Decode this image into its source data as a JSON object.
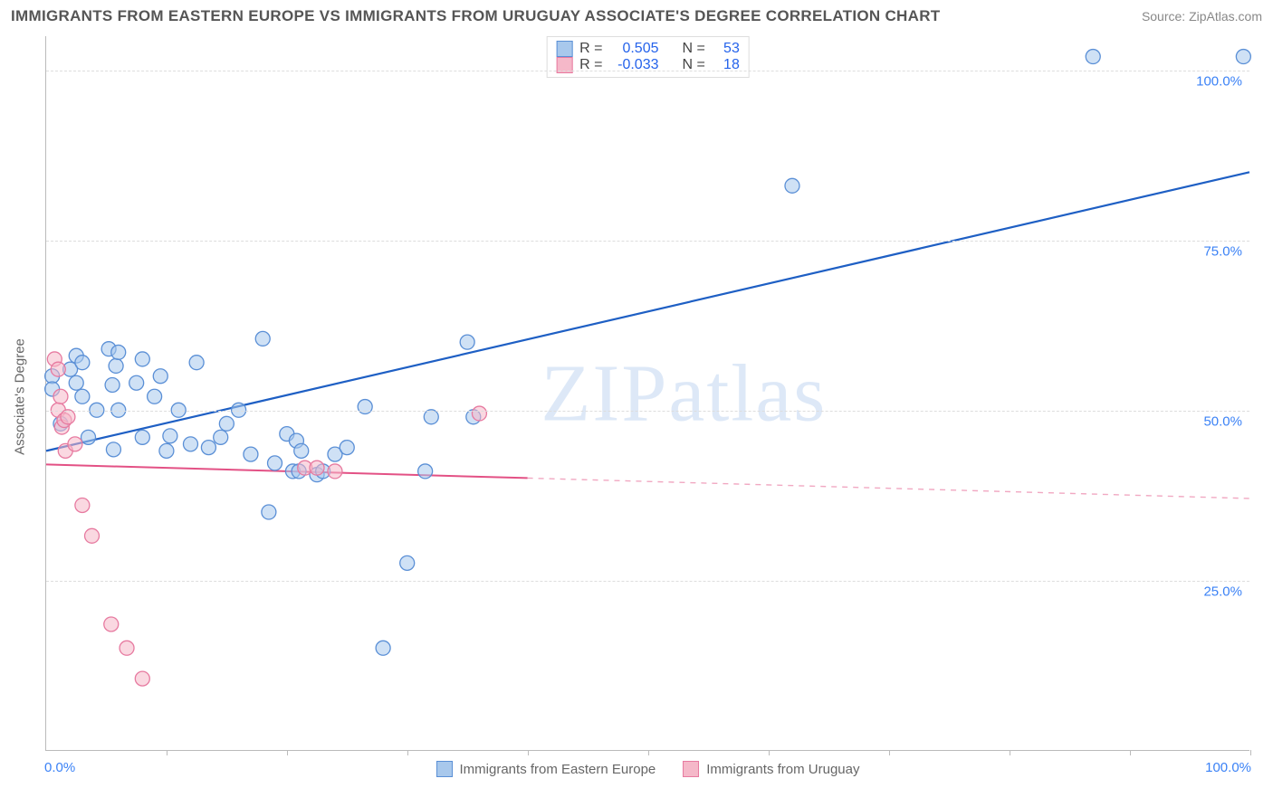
{
  "header": {
    "title": "IMMIGRANTS FROM EASTERN EUROPE VS IMMIGRANTS FROM URUGUAY ASSOCIATE'S DEGREE CORRELATION CHART",
    "source": "Source: ZipAtlas.com"
  },
  "chart": {
    "type": "scatter",
    "xlim": [
      0,
      100
    ],
    "ylim": [
      0,
      105
    ],
    "y_ticks": [
      25,
      50,
      75,
      100
    ],
    "y_tick_labels": [
      "25.0%",
      "50.0%",
      "75.0%",
      "100.0%"
    ],
    "x_ticks": [
      10,
      20,
      30,
      40,
      50,
      60,
      70,
      80,
      90,
      100
    ],
    "x_left_label": "0.0%",
    "x_right_label": "100.0%",
    "y_axis_title": "Associate's Degree",
    "background_color": "#ffffff",
    "grid_color": "#dddddd",
    "axis_color": "#bbbbbb",
    "tick_label_color": "#3b82f6",
    "marker_radius": 8,
    "marker_stroke_width": 1.3,
    "series": [
      {
        "name": "Immigrants from Eastern Europe",
        "color_fill": "#a8c8ec",
        "color_stroke": "#5a8fd6",
        "fill_opacity": 0.55,
        "trend": {
          "x1": 0,
          "y1": 44,
          "x2": 100,
          "y2": 85,
          "color": "#1e5fc4",
          "width": 2.2,
          "dash_from_x": null
        },
        "points": [
          [
            0.5,
            55
          ],
          [
            0.5,
            53.1
          ],
          [
            1.2,
            48
          ],
          [
            2,
            56
          ],
          [
            2.5,
            58
          ],
          [
            2.5,
            54
          ],
          [
            3,
            52
          ],
          [
            3,
            57
          ],
          [
            3.5,
            46
          ],
          [
            4.2,
            50
          ],
          [
            5.2,
            59
          ],
          [
            5.5,
            53.7
          ],
          [
            5.8,
            56.5
          ],
          [
            6,
            58.5
          ],
          [
            5.6,
            44.2
          ],
          [
            6,
            50
          ],
          [
            7.5,
            54
          ],
          [
            8,
            46
          ],
          [
            8,
            57.5
          ],
          [
            9,
            52
          ],
          [
            9.5,
            55
          ],
          [
            10,
            44
          ],
          [
            10.3,
            46.2
          ],
          [
            11,
            50
          ],
          [
            12,
            45
          ],
          [
            12.5,
            57
          ],
          [
            13.5,
            44.5
          ],
          [
            14.5,
            46
          ],
          [
            15,
            48
          ],
          [
            16,
            50
          ],
          [
            17,
            43.5
          ],
          [
            18,
            60.5
          ],
          [
            18.5,
            35
          ],
          [
            19,
            42.2
          ],
          [
            20,
            46.5
          ],
          [
            20.5,
            41
          ],
          [
            20.8,
            45.5
          ],
          [
            21,
            41
          ],
          [
            21.2,
            44
          ],
          [
            22.5,
            40.5
          ],
          [
            23,
            41
          ],
          [
            24,
            43.5
          ],
          [
            25,
            44.5
          ],
          [
            26.5,
            50.5
          ],
          [
            28,
            15
          ],
          [
            30,
            27.5
          ],
          [
            31.5,
            41
          ],
          [
            32,
            49
          ],
          [
            35,
            60
          ],
          [
            35.5,
            49
          ],
          [
            62,
            83
          ],
          [
            87,
            102
          ],
          [
            99.5,
            102
          ]
        ]
      },
      {
        "name": "Immigrants from Uruguay",
        "color_fill": "#f5b8c9",
        "color_stroke": "#e77aa0",
        "fill_opacity": 0.55,
        "trend": {
          "x1": 0,
          "y1": 42,
          "x2": 100,
          "y2": 37,
          "color": "#e35185",
          "width": 2,
          "dash_from_x": 40
        },
        "points": [
          [
            0.7,
            57.5
          ],
          [
            1,
            56
          ],
          [
            1,
            50
          ],
          [
            1.2,
            52
          ],
          [
            1.3,
            47.5
          ],
          [
            1.5,
            48.5
          ],
          [
            1.6,
            44
          ],
          [
            1.8,
            49
          ],
          [
            2.4,
            45
          ],
          [
            3,
            36
          ],
          [
            3.8,
            31.5
          ],
          [
            5.4,
            18.5
          ],
          [
            6.7,
            15
          ],
          [
            8,
            10.5
          ],
          [
            21.5,
            41.5
          ],
          [
            22.5,
            41.5
          ],
          [
            24,
            41
          ],
          [
            36,
            49.5
          ]
        ]
      }
    ],
    "stats_box": [
      {
        "r_label": "R =",
        "r_value": "0.505",
        "n_label": "N =",
        "n_value": "53",
        "swatch_fill": "#a8c8ec",
        "swatch_stroke": "#5a8fd6"
      },
      {
        "r_label": "R =",
        "r_value": "-0.033",
        "n_label": "N =",
        "n_value": "18",
        "swatch_fill": "#f5b8c9",
        "swatch_stroke": "#e77aa0"
      }
    ],
    "watermark": {
      "text_bold": "ZIP",
      "text_thin": "atlas"
    },
    "bottom_legend": [
      {
        "label": "Immigrants from Eastern Europe",
        "fill": "#a8c8ec",
        "stroke": "#5a8fd6"
      },
      {
        "label": "Immigrants from Uruguay",
        "fill": "#f5b8c9",
        "stroke": "#e77aa0"
      }
    ]
  }
}
